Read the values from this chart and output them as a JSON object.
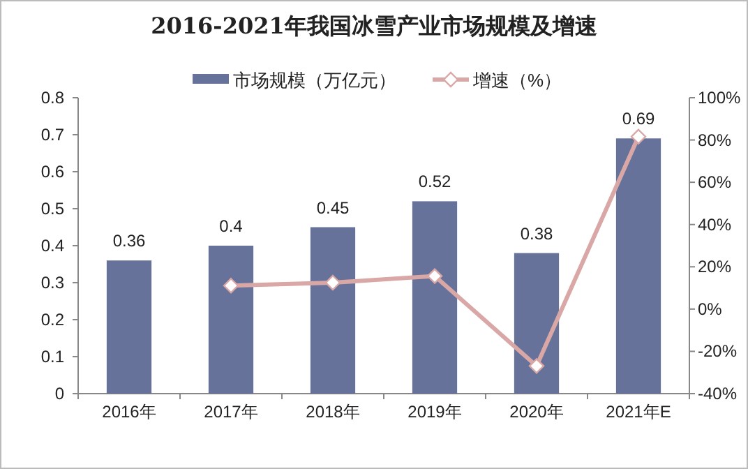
{
  "chart_data": {
    "type": "bar",
    "title": "2016-2021年我国冰雪产业市场规模及增速",
    "categories": [
      "2016年",
      "2017年",
      "2018年",
      "2019年",
      "2020年",
      "2021年E"
    ],
    "series": [
      {
        "name": "市场规模（万亿元）",
        "color": "#67729a",
        "values": [
          0.36,
          0.4,
          0.45,
          0.52,
          0.38,
          0.69
        ],
        "data_labels": true
      },
      {
        "name": "增速（%）",
        "type": "line",
        "axis": "y2",
        "color": "#d9a8a6",
        "marker": "diamond",
        "values": [
          null,
          11.1,
          12.5,
          15.6,
          -26.9,
          81.6
        ]
      }
    ],
    "ylim": [
      0,
      0.8
    ],
    "yticks": [
      0,
      0.1,
      0.2,
      0.3,
      0.4,
      0.5,
      0.6,
      0.7,
      0.8
    ],
    "y2lim": [
      -40,
      100
    ],
    "y2ticks": [
      {
        "value": -40,
        "label": "-40%"
      },
      {
        "value": -20,
        "label": "-20%"
      },
      {
        "value": 0,
        "label": "0%"
      },
      {
        "value": 20,
        "label": "20%"
      },
      {
        "value": 40,
        "label": "40%"
      },
      {
        "value": 60,
        "label": "60%"
      },
      {
        "value": 80,
        "label": "80%"
      },
      {
        "value": 100,
        "label": "100%"
      }
    ],
    "grid": false,
    "legend": "top"
  }
}
